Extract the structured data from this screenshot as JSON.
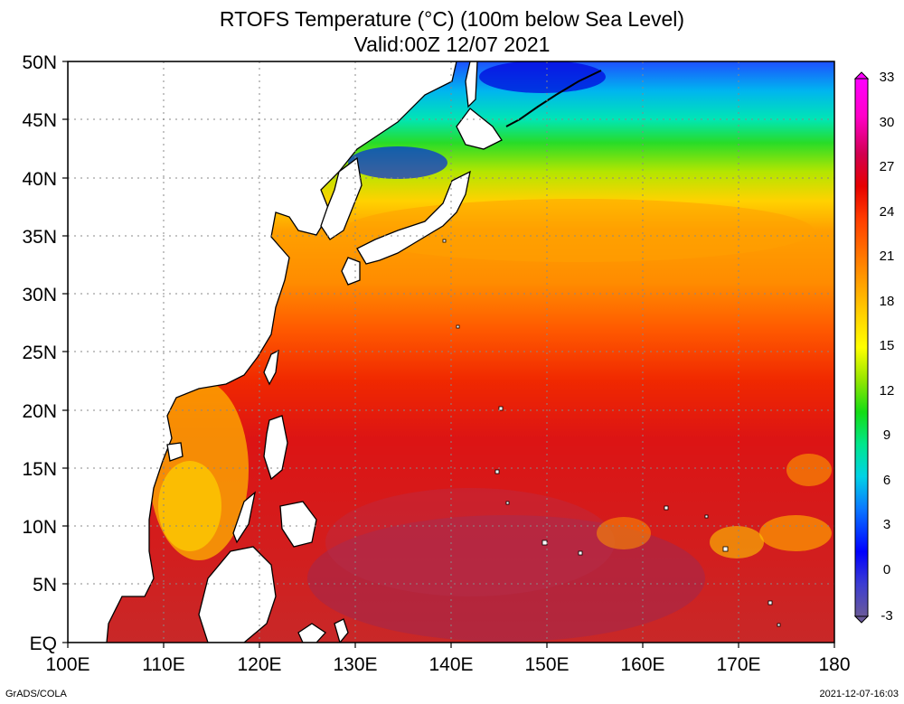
{
  "title": {
    "line1": "RTOFS Temperature (°C) (100m below Sea Level)",
    "line2": "Valid:00Z 12/07 2021"
  },
  "axes": {
    "x_ticks": [
      "100E",
      "110E",
      "120E",
      "130E",
      "140E",
      "150E",
      "160E",
      "170E",
      "180"
    ],
    "y_ticks": [
      "EQ",
      "5N",
      "10N",
      "15N",
      "20N",
      "25N",
      "30N",
      "35N",
      "40N",
      "45N",
      "50N"
    ],
    "lon_range": [
      100,
      180
    ],
    "lat_range": [
      0,
      50
    ],
    "grid": "dotted"
  },
  "colorbar": {
    "labels": [
      "33",
      "30",
      "27",
      "24",
      "21",
      "18",
      "15",
      "12",
      "9",
      "6",
      "3",
      "0",
      "-3"
    ],
    "range": [
      -3,
      33
    ],
    "colors": [
      "#6a5a9a",
      "#3c3cd2",
      "#0000ff",
      "#0a78ff",
      "#00d2e6",
      "#00e68c",
      "#14dc14",
      "#96e600",
      "#ffff00",
      "#ffd200",
      "#ffa000",
      "#ff6e00",
      "#ff3c00",
      "#e60000",
      "#d20050",
      "#ff00c8",
      "#ff00ff"
    ]
  },
  "footer": {
    "left": "GrADS/COLA",
    "right": "2021-12-07-16:03"
  },
  "colors": {
    "land": "#ffffff",
    "coast": "#000000",
    "warm_pool": "#d82020",
    "kuroshio": "#ffa000",
    "subarctic": "#00c8e0"
  }
}
